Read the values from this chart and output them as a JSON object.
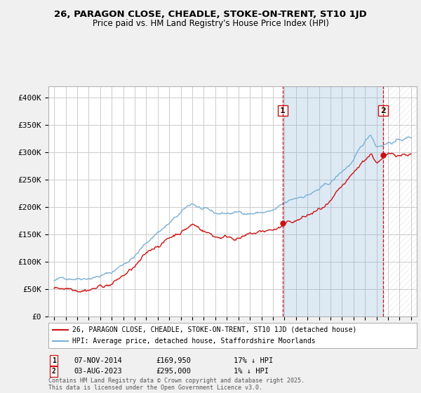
{
  "title": "26, PARAGON CLOSE, CHEADLE, STOKE-ON-TRENT, ST10 1JD",
  "subtitle": "Price paid vs. HM Land Registry's House Price Index (HPI)",
  "ylim": [
    0,
    420000
  ],
  "yticks": [
    0,
    50000,
    100000,
    150000,
    200000,
    250000,
    300000,
    350000,
    400000
  ],
  "ytick_labels": [
    "£0",
    "£50K",
    "£100K",
    "£150K",
    "£200K",
    "£250K",
    "£300K",
    "£350K",
    "£400K"
  ],
  "xlim_start": 1994.5,
  "xlim_end": 2026.5,
  "hpi_color": "#7bafd4",
  "price_color": "#cc1111",
  "dashed_line_color": "#cc1111",
  "marker1_x": 2014.85,
  "marker1_y": 169950,
  "marker1_label": "1",
  "marker1_date": "07-NOV-2014",
  "marker1_price": "£169,950",
  "marker1_hpi": "17% ↓ HPI",
  "marker2_x": 2023.58,
  "marker2_y": 295000,
  "marker2_label": "2",
  "marker2_date": "03-AUG-2023",
  "marker2_price": "£295,000",
  "marker2_hpi": "1% ↓ HPI",
  "legend_line1": "26, PARAGON CLOSE, CHEADLE, STOKE-ON-TRENT, ST10 1JD (detached house)",
  "legend_line2": "HPI: Average price, detached house, Staffordshire Moorlands",
  "footnote": "Contains HM Land Registry data © Crown copyright and database right 2025.\nThis data is licensed under the Open Government Licence v3.0.",
  "bg_color": "#f0f0f0",
  "plot_bg_color": "#ffffff",
  "grid_color": "#cccccc",
  "shade_color": "#ddeeff"
}
